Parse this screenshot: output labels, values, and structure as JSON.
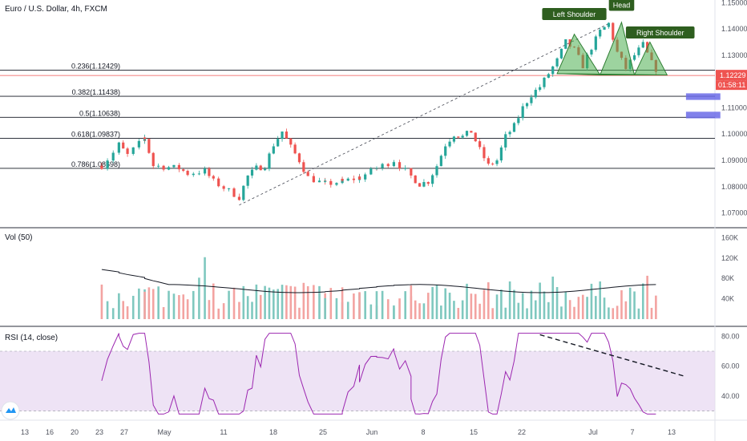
{
  "header": {
    "title": "Euro / U.S. Dollar, 4h, FXCM"
  },
  "chart_data": [
    {
      "type": "candlestick",
      "title": "Euro / U.S. Dollar, 4h, FXCM",
      "ylim": [
        1.065,
        1.151
      ],
      "y_ticks": [
        {
          "value": 1.07,
          "label": "1.07000"
        },
        {
          "value": 1.08,
          "label": "1.08000"
        },
        {
          "value": 1.09,
          "label": "1.09000"
        },
        {
          "value": 1.1,
          "label": "1.10000"
        },
        {
          "value": 1.11,
          "label": "1.11000"
        },
        {
          "value": 1.12,
          "label": "1.12000"
        },
        {
          "value": 1.13,
          "label": "1.13000"
        },
        {
          "value": 1.14,
          "label": "1.14000"
        },
        {
          "value": 1.15,
          "label": "1.15000"
        }
      ],
      "x_ticks": [
        "13",
        "16",
        "20",
        "23",
        "27",
        "May",
        "11",
        "18",
        "25",
        "Jun",
        "8",
        "15",
        "22",
        "Jul",
        "7",
        "13"
      ],
      "price_path": [
        {
          "day": 11,
          "price": 1.088
        },
        {
          "day": 13,
          "price": 1.096
        },
        {
          "day": 14,
          "price": 1.092
        },
        {
          "day": 16,
          "price": 1.0985
        },
        {
          "day": 17,
          "price": 1.088
        },
        {
          "day": 20,
          "price": 1.087
        },
        {
          "day": 21,
          "price": 1.085
        },
        {
          "day": 23,
          "price": 1.086
        },
        {
          "day": 24,
          "price": 1.082
        },
        {
          "day": 27,
          "price": 1.076
        },
        {
          "day": 28,
          "price": 1.084
        },
        {
          "day": 29,
          "price": 1.087
        },
        {
          "day": 30,
          "price": 1.088
        },
        {
          "day": 31,
          "price": 1.096
        },
        {
          "day": 32,
          "price": 1.101
        },
        {
          "day": 33,
          "price": 1.095
        },
        {
          "day": 34,
          "price": 1.09
        },
        {
          "day": 35,
          "price": 1.0835
        },
        {
          "day": 37,
          "price": 1.081
        },
        {
          "day": 39,
          "price": 1.082
        },
        {
          "day": 41,
          "price": 1.0835
        },
        {
          "day": 43,
          "price": 1.087
        },
        {
          "day": 45,
          "price": 1.09
        },
        {
          "day": 47,
          "price": 1.084
        },
        {
          "day": 48,
          "price": 1.081
        },
        {
          "day": 49,
          "price": 1.082
        },
        {
          "day": 50,
          "price": 1.088
        },
        {
          "day": 51,
          "price": 1.096
        },
        {
          "day": 52,
          "price": 1.1
        },
        {
          "day": 53,
          "price": 1.099
        },
        {
          "day": 54,
          "price": 1.101
        },
        {
          "day": 55,
          "price": 1.094
        },
        {
          "day": 56,
          "price": 1.088
        },
        {
          "day": 57,
          "price": 1.09
        },
        {
          "day": 58,
          "price": 1.099
        },
        {
          "day": 59,
          "price": 1.103
        },
        {
          "day": 60,
          "price": 1.11
        },
        {
          "day": 61,
          "price": 1.115
        },
        {
          "day": 62,
          "price": 1.118
        },
        {
          "day": 63,
          "price": 1.123
        },
        {
          "day": 64,
          "price": 1.128
        },
        {
          "day": 65,
          "price": 1.135
        },
        {
          "day": 66,
          "price": 1.132
        },
        {
          "day": 67,
          "price": 1.126
        },
        {
          "day": 68,
          "price": 1.133
        },
        {
          "day": 69,
          "price": 1.139
        },
        {
          "day": 70,
          "price": 1.142
        },
        {
          "day": 71,
          "price": 1.131
        },
        {
          "day": 72,
          "price": 1.125
        },
        {
          "day": 73,
          "price": 1.13
        },
        {
          "day": 74,
          "price": 1.134
        },
        {
          "day": 75,
          "price": 1.127
        },
        {
          "day": 76,
          "price": 1.1225
        }
      ],
      "current_price": {
        "value": 1.12229,
        "label": "1.12229",
        "countdown": "01:58:11"
      },
      "fib_levels": [
        {
          "label": "0.236(1.12429)",
          "value": 1.12429
        },
        {
          "label": "0.382(1.11438)",
          "value": 1.11438
        },
        {
          "label": "0.5(1.10638)",
          "value": 1.10638
        },
        {
          "label": "0.618(1.09837)",
          "value": 1.09837
        },
        {
          "label": "0.786(1.08698)",
          "value": 1.08698
        }
      ],
      "fib_trend_line": {
        "start": {
          "day": 27,
          "price": 1.073
        },
        "end": {
          "day": 70,
          "price": 1.142
        }
      },
      "pattern": {
        "points": [
          {
            "day": 64,
            "price": 1.123
          },
          {
            "day": 66,
            "price": 1.138
          },
          {
            "day": 69,
            "price": 1.1225
          },
          {
            "day": 71.5,
            "price": 1.1425
          },
          {
            "day": 73,
            "price": 1.1225
          },
          {
            "day": 74.8,
            "price": 1.135
          },
          {
            "day": 76.8,
            "price": 1.1225
          }
        ],
        "labels": [
          {
            "text": "Left Shoulder",
            "day": 66,
            "price": 1.1455
          },
          {
            "text": "Head",
            "day": 71.5,
            "price": 1.149
          },
          {
            "text": "Right Shoulder",
            "day": 76,
            "price": 1.1385
          }
        ],
        "fill": "#4caf50"
      },
      "targets": [
        {
          "start_day": 79,
          "end_day": 83,
          "top": 1.1155,
          "bottom": 1.113,
          "color": "#6b6be8"
        },
        {
          "start_day": 79,
          "end_day": 83,
          "top": 1.1085,
          "bottom": 1.106,
          "color": "#6b6be8"
        }
      ],
      "colors": {
        "up": "#26a69a",
        "down": "#ef5350",
        "fib_line": "#131722",
        "current_line": "#ef5350"
      }
    },
    {
      "type": "bar",
      "title": "Vol (50)",
      "ylim": [
        0,
        170000
      ],
      "y_ticks": [
        {
          "value": 40000,
          "label": "40K"
        },
        {
          "value": 80000,
          "label": "80K"
        },
        {
          "value": 120000,
          "label": "120K"
        },
        {
          "value": 160000,
          "label": "160K"
        }
      ],
      "average": 60000
    },
    {
      "type": "line",
      "title": "RSI (14, close)",
      "ylim": [
        25,
        85
      ],
      "y_ticks": [
        {
          "value": 40,
          "label": "40.00"
        },
        {
          "value": 60,
          "label": "60.00"
        },
        {
          "value": 80,
          "label": "80.00"
        }
      ],
      "band": [
        30,
        70
      ],
      "trend_line": {
        "start": {
          "day": 62,
          "value": 81
        },
        "end": {
          "day": 79,
          "value": 53
        }
      },
      "color": "#9c27b0",
      "band_color": "#e8d9f2"
    }
  ]
}
